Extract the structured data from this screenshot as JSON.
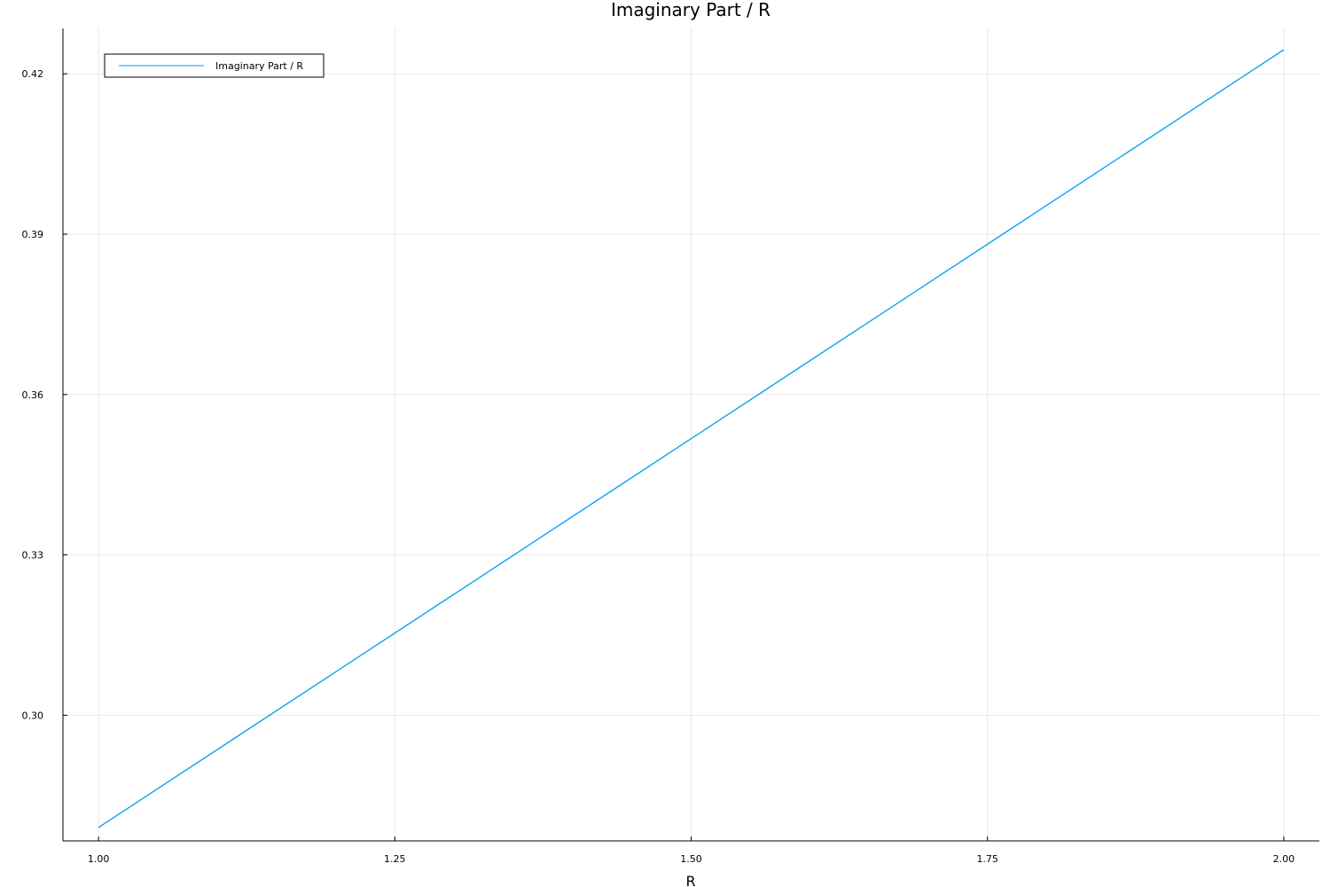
{
  "chart_data": {
    "type": "line",
    "title": "Imaginary Part / R",
    "xlabel": "R",
    "ylabel": "",
    "xlim": [
      0.97,
      2.03
    ],
    "ylim": [
      0.2765,
      0.4285
    ],
    "xticks": [
      1.0,
      1.25,
      1.5,
      1.75,
      2.0
    ],
    "xtick_labels": [
      "1.00",
      "1.25",
      "1.50",
      "1.75",
      "2.00"
    ],
    "yticks": [
      0.3,
      0.33,
      0.36,
      0.39,
      0.42
    ],
    "ytick_labels": [
      "0.30",
      "0.33",
      "0.36",
      "0.39",
      "0.42"
    ],
    "grid": true,
    "legend_position": "top-left",
    "series": [
      {
        "name": "Imaginary Part / R",
        "color": "#009af9",
        "x": [
          1.0,
          2.0
        ],
        "y": [
          0.279,
          0.4245
        ]
      }
    ]
  }
}
